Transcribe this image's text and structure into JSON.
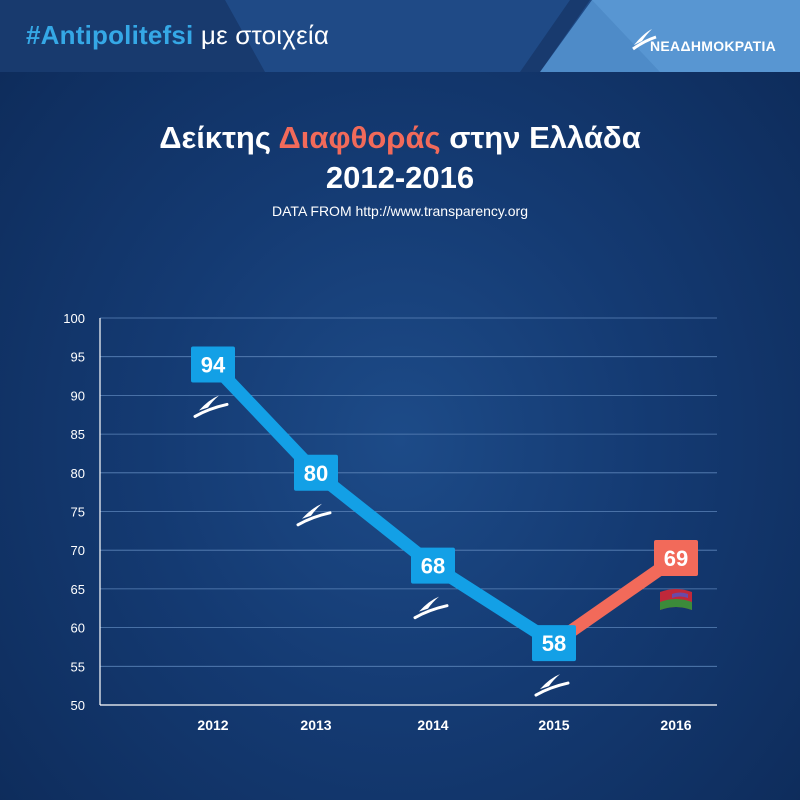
{
  "header": {
    "hashtag": "#Antipolitefsi",
    "hashtag_rest": " με στοιχεία",
    "logo_text": "ΝΕΑΔΗΜΟΚΡΑΤΙΑ"
  },
  "title": {
    "part1": "Δείκτης ",
    "highlight": "Διαφθοράς",
    "part2": " στην Ελλάδα",
    "line2": "2012-2016"
  },
  "source": "DATA FROM http://www.transparency.org",
  "colors": {
    "nd_blue": "#13a0e6",
    "syriza_red": "#f26a5a",
    "highlight": "#f26a5a",
    "hashtag": "#35a8e6"
  },
  "chart_data": {
    "type": "line",
    "categories": [
      "2012",
      "2013",
      "2014",
      "2015",
      "2016"
    ],
    "values": [
      94,
      80,
      68,
      58,
      69
    ],
    "point_labels": [
      "94",
      "80",
      "68",
      "58",
      "69"
    ],
    "ylim": [
      50,
      100
    ],
    "yticks": [
      "100",
      "95",
      "90",
      "85",
      "80",
      "75",
      "70",
      "65",
      "60",
      "55",
      "50"
    ],
    "grid": true,
    "segment_colors": [
      "#13a0e6",
      "#13a0e6",
      "#13a0e6",
      "#f26a5a"
    ],
    "point_colors": [
      "#13a0e6",
      "#13a0e6",
      "#13a0e6",
      "#13a0e6",
      "#f26a5a"
    ],
    "point_icons": [
      "nd-logo-icon",
      "nd-logo-icon",
      "nd-logo-icon",
      "nd-logo-icon",
      "syriza-flag-icon"
    ],
    "xlabel": "",
    "ylabel": ""
  }
}
